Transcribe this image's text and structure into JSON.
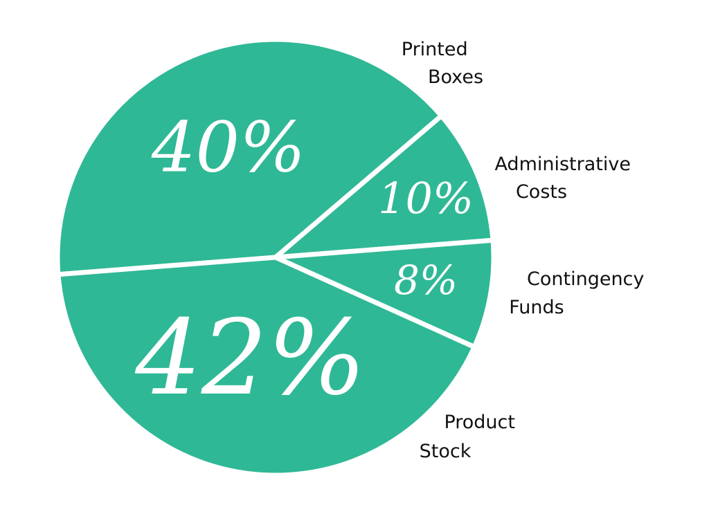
{
  "chart_data": {
    "type": "pie",
    "categories": [
      "Printed Boxes",
      "Administrative Costs",
      "Contingency Funds",
      "Product Stock"
    ],
    "values": [
      40,
      10,
      8,
      42
    ],
    "value_labels": [
      "40%",
      "10%",
      "8%",
      "42%"
    ],
    "color": "#2fb896"
  }
}
